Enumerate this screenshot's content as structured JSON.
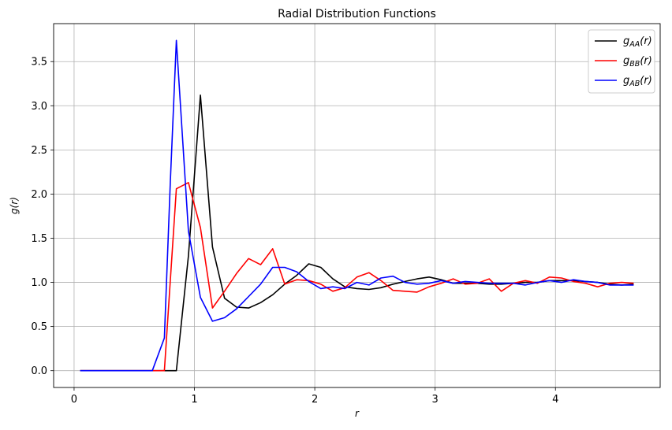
{
  "chart_data": {
    "type": "line",
    "title": "Radial Distribution Functions",
    "xlabel": "r",
    "ylabel": "g(r)",
    "xlim": [
      -0.17,
      4.87
    ],
    "ylim": [
      -0.19,
      3.93
    ],
    "xticks": [
      0,
      1,
      2,
      3,
      4
    ],
    "yticks": [
      0.0,
      0.5,
      1.0,
      1.5,
      2.0,
      2.5,
      3.0,
      3.5
    ],
    "xtick_labels": [
      "0",
      "1",
      "2",
      "3",
      "4"
    ],
    "ytick_labels": [
      "0.0",
      "0.5",
      "1.0",
      "1.5",
      "2.0",
      "2.5",
      "3.0",
      "3.5"
    ],
    "grid": true,
    "legend_position": "top-right",
    "series": [
      {
        "name": "gAA(r)",
        "label_main": "g",
        "label_sub": "AA",
        "label_tail": "(r)",
        "color": "#000000",
        "x": [
          0.05,
          0.15,
          0.25,
          0.35,
          0.45,
          0.55,
          0.65,
          0.75,
          0.85,
          0.95,
          1.05,
          1.15,
          1.25,
          1.35,
          1.45,
          1.55,
          1.65,
          1.75,
          1.85,
          1.95,
          2.05,
          2.15,
          2.25,
          2.35,
          2.45,
          2.55,
          2.65,
          2.75,
          2.85,
          2.95,
          3.05,
          3.15,
          3.25,
          3.35,
          3.45,
          3.55,
          3.65,
          3.75,
          3.85,
          3.95,
          4.05,
          4.15,
          4.25,
          4.35,
          4.45,
          4.55,
          4.65
        ],
        "y": [
          0,
          0,
          0,
          0,
          0,
          0,
          0,
          0,
          0,
          1.3,
          3.12,
          1.4,
          0.82,
          0.72,
          0.71,
          0.77,
          0.86,
          0.98,
          1.08,
          1.21,
          1.17,
          1.04,
          0.95,
          0.93,
          0.92,
          0.94,
          0.98,
          1.01,
          1.04,
          1.06,
          1.03,
          0.99,
          0.99,
          0.99,
          0.98,
          0.98,
          0.99,
          1.0,
          1.0,
          1.02,
          1.02,
          1.02,
          1.01,
          1.0,
          0.98,
          0.97,
          0.98
        ]
      },
      {
        "name": "gBB(r)",
        "label_main": "g",
        "label_sub": "BB",
        "label_tail": "(r)",
        "color": "#ff0000",
        "x": [
          0.05,
          0.15,
          0.25,
          0.35,
          0.45,
          0.55,
          0.65,
          0.75,
          0.85,
          0.95,
          1.05,
          1.15,
          1.25,
          1.35,
          1.45,
          1.55,
          1.65,
          1.75,
          1.85,
          1.95,
          2.05,
          2.15,
          2.25,
          2.35,
          2.45,
          2.55,
          2.65,
          2.75,
          2.85,
          2.95,
          3.05,
          3.15,
          3.25,
          3.35,
          3.45,
          3.55,
          3.65,
          3.75,
          3.85,
          3.95,
          4.05,
          4.15,
          4.25,
          4.35,
          4.45,
          4.55,
          4.65
        ],
        "y": [
          0,
          0,
          0,
          0,
          0,
          0,
          0,
          0,
          2.06,
          2.13,
          1.62,
          0.71,
          0.9,
          1.1,
          1.27,
          1.2,
          1.38,
          0.98,
          1.03,
          1.02,
          0.98,
          0.9,
          0.94,
          1.06,
          1.11,
          1.02,
          0.91,
          0.9,
          0.89,
          0.95,
          0.99,
          1.04,
          0.98,
          0.99,
          1.04,
          0.9,
          0.99,
          1.02,
          0.99,
          1.06,
          1.05,
          1.01,
          0.99,
          0.95,
          0.99,
          1.0,
          0.99
        ]
      },
      {
        "name": "gAB(r)",
        "label_main": "g",
        "label_sub": "AB",
        "label_tail": "(r)",
        "color": "#0000ff",
        "x": [
          0.05,
          0.15,
          0.25,
          0.35,
          0.45,
          0.55,
          0.65,
          0.75,
          0.8,
          0.85,
          0.95,
          1.05,
          1.15,
          1.25,
          1.35,
          1.45,
          1.55,
          1.65,
          1.75,
          1.85,
          1.95,
          2.05,
          2.15,
          2.25,
          2.35,
          2.45,
          2.55,
          2.65,
          2.75,
          2.85,
          2.95,
          3.05,
          3.15,
          3.25,
          3.35,
          3.45,
          3.55,
          3.65,
          3.75,
          3.85,
          3.95,
          4.05,
          4.15,
          4.25,
          4.35,
          4.45,
          4.55,
          4.65
        ],
        "y": [
          0,
          0,
          0,
          0,
          0,
          0,
          0,
          0.37,
          2.15,
          3.74,
          1.58,
          0.83,
          0.56,
          0.6,
          0.7,
          0.84,
          0.98,
          1.17,
          1.17,
          1.12,
          1.01,
          0.93,
          0.95,
          0.93,
          1.0,
          0.97,
          1.05,
          1.07,
          1.0,
          0.98,
          0.99,
          1.02,
          0.99,
          1.01,
          1.0,
          0.99,
          0.99,
          0.99,
          0.97,
          1.0,
          1.02,
          1.0,
          1.03,
          1.01,
          1.0,
          0.97,
          0.97,
          0.97
        ]
      }
    ]
  }
}
